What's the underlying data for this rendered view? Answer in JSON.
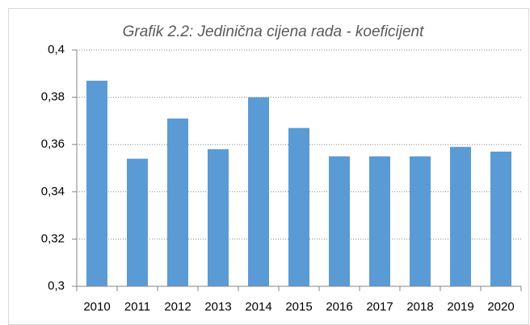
{
  "chart_data": {
    "type": "bar",
    "title": "Grafik 2.2: Jedinična cijena rada - koeficijent",
    "categories": [
      "2010",
      "2011",
      "2012",
      "2013",
      "2014",
      "2015",
      "2016",
      "2017",
      "2018",
      "2019",
      "2020"
    ],
    "values": [
      0.387,
      0.354,
      0.371,
      0.358,
      0.38,
      0.367,
      0.355,
      0.355,
      0.355,
      0.359,
      0.357
    ],
    "color": "#5b9bd5",
    "ylim": [
      0.3,
      0.4
    ],
    "yticks": [
      {
        "value": 0.3,
        "label": "0,3"
      },
      {
        "value": 0.32,
        "label": "0,32"
      },
      {
        "value": 0.34,
        "label": "0,34"
      },
      {
        "value": 0.36,
        "label": "0,36"
      },
      {
        "value": 0.38,
        "label": "0,38"
      },
      {
        "value": 0.4,
        "label": "0,4"
      }
    ],
    "grid": true
  }
}
